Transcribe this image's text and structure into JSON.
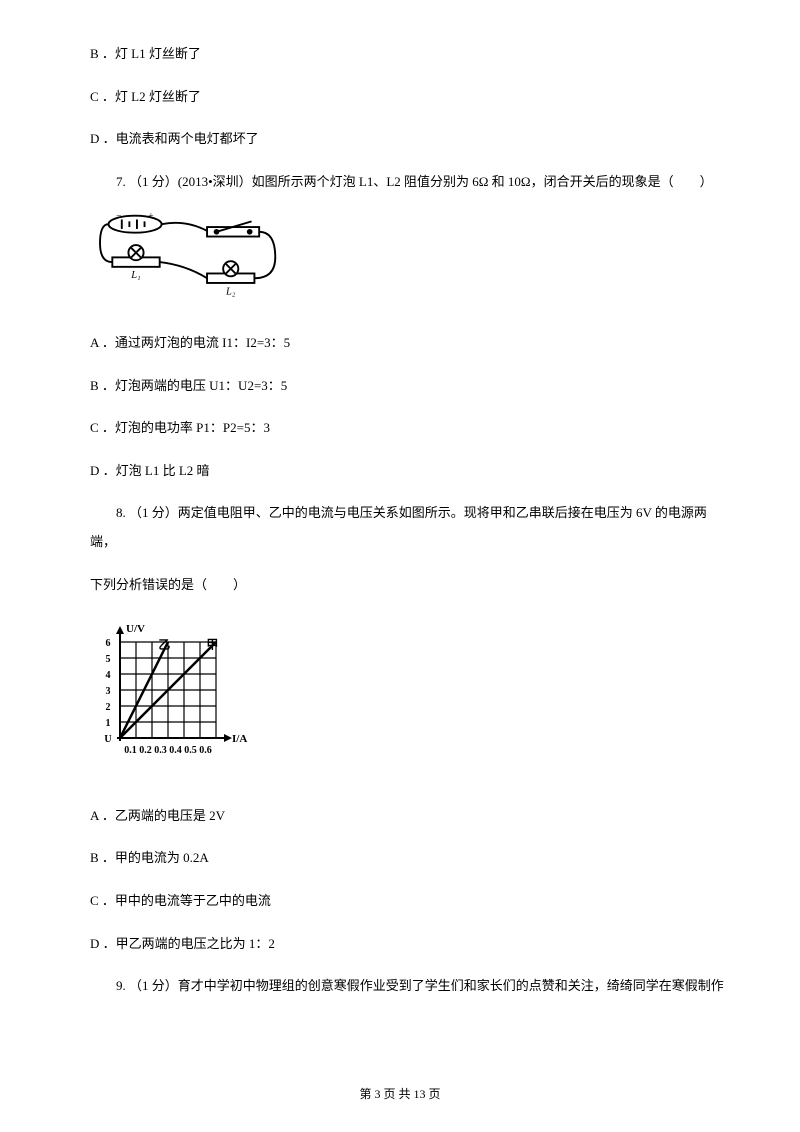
{
  "q6_options": {
    "b": "B ．灯 L1 灯丝断了",
    "c": "C ．灯 L2 灯丝断了",
    "d": "D ．电流表和两个电灯都坏了"
  },
  "q7": {
    "text": "7. （1 分）(2013•深圳）如图所示两个灯泡 L1、L2 阻值分别为 6Ω 和 10Ω，闭合开关后的现象是（　　）",
    "options": {
      "a": "A ．通过两灯泡的电流 I1：I2=3：5",
      "b": "B ．灯泡两端的电压 U1：U2=3：5",
      "c": "C ．灯泡的电功率 P1：P2=5：3",
      "d": "D ．灯泡 L1 比 L2 暗"
    },
    "circuit": {
      "labels": {
        "l1": "L₁",
        "l2": "L₂"
      },
      "stroke": "#000000",
      "stroke_width": 1.5
    }
  },
  "q8": {
    "text": "8. （1 分）两定值电阻甲、乙中的电流与电压关系如图所示。现将甲和乙串联后接在电压为 6V 的电源两端，",
    "text2": "下列分析错误的是（　　）",
    "options": {
      "a": "A ．乙两端的电压是 2V",
      "b": "B ．甲的电流为 0.2A",
      "c": "C ．甲中的电流等于乙中的电流",
      "d": "D ．甲乙两端的电压之比为 1：2"
    },
    "graph": {
      "ylabel": "U/V",
      "xlabel": "I/A",
      "line1_label": "乙",
      "line2_label": "甲",
      "y_max": 6,
      "x_max": 6,
      "y_ticks": [
        "1",
        "2",
        "3",
        "4",
        "5",
        "6"
      ],
      "x_ticks": [
        "0.1",
        "0.2",
        "0.3",
        "0.4",
        "0.5",
        "0.6"
      ],
      "grid_size": 6,
      "stroke": "#000000",
      "line_width": 2.5,
      "grid_width": 1.2,
      "font_size": 10
    }
  },
  "q9": {
    "text": "9. （1 分）育才中学初中物理组的创意寒假作业受到了学生们和家长们的点赞和关注，绮绮同学在寒假制作"
  },
  "footer": {
    "text": "第 3 页 共 13 页"
  }
}
